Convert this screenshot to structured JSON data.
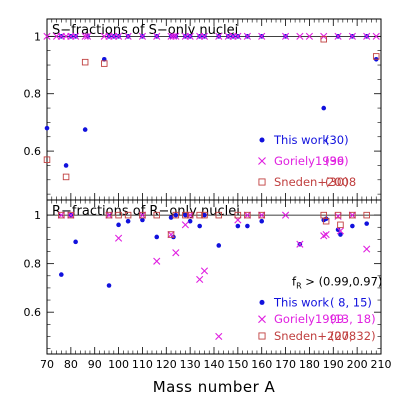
{
  "colors": {
    "this_work": "#1111dd",
    "goriely": "#e020e0",
    "sneden": "#c04040",
    "axis": "#000000"
  },
  "chart_data": [
    {
      "type": "scatter",
      "panel_title": "S−fractions of S−only nuclei",
      "xlim": [
        70,
        210
      ],
      "ylim": [
        0.44,
        1.05
      ],
      "reference_line": 1.0,
      "yticks": [
        0.6,
        0.8,
        1.0
      ],
      "ytick_labels": [
        "0.6",
        "0.8",
        "1"
      ],
      "legend_position": "bottom-right",
      "series": [
        {
          "name": "This work",
          "count_label": "(30)",
          "marker": "dot",
          "color": "#1111dd",
          "x": [
            70,
            76,
            78,
            80,
            82,
            86,
            87,
            94,
            96,
            98,
            100,
            104,
            110,
            116,
            122,
            123,
            124,
            128,
            130,
            134,
            136,
            142,
            146,
            148,
            150,
            154,
            160,
            170,
            186,
            192,
            198,
            204,
            208
          ],
          "y": [
            0.68,
            1.0,
            0.55,
            1.0,
            1.0,
            0.675,
            1.0,
            0.92,
            1.0,
            1.0,
            1.0,
            1.0,
            1.0,
            1.0,
            1.0,
            1.0,
            1.0,
            1.0,
            1.0,
            1.0,
            1.0,
            1.0,
            1.0,
            1.0,
            1.0,
            1.0,
            1.0,
            1.0,
            0.75,
            1.0,
            1.0,
            1.0,
            0.92
          ]
        },
        {
          "name": "Goriely1999",
          "count_label": "(36)",
          "marker": "cross",
          "color": "#e020e0",
          "x": [
            70,
            74,
            76,
            78,
            80,
            82,
            86,
            87,
            94,
            96,
            98,
            100,
            104,
            110,
            116,
            122,
            123,
            124,
            128,
            130,
            134,
            136,
            142,
            146,
            148,
            150,
            154,
            160,
            170,
            176,
            180,
            186,
            192,
            198,
            204,
            208
          ],
          "y": [
            1.0,
            1.0,
            1.0,
            1.0,
            1.0,
            1.0,
            1.0,
            1.0,
            1.0,
            1.0,
            1.0,
            1.0,
            1.0,
            1.0,
            1.0,
            1.0,
            1.0,
            1.0,
            1.0,
            1.0,
            1.0,
            1.0,
            1.0,
            1.0,
            1.0,
            1.0,
            1.0,
            1.0,
            1.0,
            1.0,
            1.0,
            1.0,
            1.0,
            1.0,
            1.0,
            1.0
          ]
        },
        {
          "name": "Sneden+2008",
          "count_label": "(30)",
          "marker": "square",
          "color": "#c04040",
          "x": [
            70,
            78,
            86,
            94,
            186,
            208
          ],
          "y": [
            0.57,
            0.51,
            0.91,
            0.905,
            0.99,
            0.93
          ]
        }
      ]
    },
    {
      "type": "scatter",
      "panel_title": "R−fractions of R−only nuclei",
      "xlim": [
        70,
        210
      ],
      "ylim": [
        0.44,
        1.05
      ],
      "reference_line": 1.0,
      "yticks": [
        0.6,
        0.8,
        1.0
      ],
      "ytick_labels": [
        "0.6",
        "0.8",
        "1"
      ],
      "xticks": [
        70,
        80,
        90,
        100,
        110,
        120,
        130,
        140,
        150,
        160,
        170,
        180,
        190,
        200,
        210
      ],
      "xtick_labels": [
        "70",
        "80",
        "90",
        "100",
        "110",
        "120",
        "130",
        "140",
        "150",
        "160",
        "170",
        "180",
        "190",
        "200",
        "210"
      ],
      "xlabel": "Mass number A",
      "legend_position": "bottom-right",
      "fr_label": "f",
      "fr_sub": "R",
      "fr_text": " >   (0.99,0.97)",
      "series": [
        {
          "name": "This work",
          "count_label": "( 8, 15)",
          "marker": "dot",
          "color": "#1111dd",
          "x": [
            76,
            80,
            82,
            96,
            100,
            104,
            110,
            116,
            122,
            123,
            124,
            128,
            130,
            134,
            136,
            142,
            150,
            154,
            160,
            176,
            186,
            187,
            192,
            193,
            198,
            204
          ],
          "y": [
            0.755,
            1.0,
            0.89,
            0.71,
            0.96,
            0.975,
            0.98,
            0.91,
            0.99,
            0.91,
            1.0,
            1.0,
            0.975,
            0.955,
            1.0,
            0.875,
            0.955,
            0.955,
            0.975,
            0.88,
            0.98,
            0.985,
            0.94,
            0.92,
            0.955,
            0.965
          ]
        },
        {
          "name": "Goriely1999",
          "count_label": "(13, 18)",
          "marker": "cross",
          "color": "#e020e0",
          "x": [
            76,
            80,
            96,
            100,
            110,
            116,
            122,
            124,
            128,
            130,
            134,
            136,
            142,
            150,
            154,
            160,
            170,
            176,
            186,
            187,
            192,
            193,
            198,
            204
          ],
          "y": [
            1.0,
            1.0,
            1.0,
            0.905,
            1.0,
            0.81,
            0.92,
            0.845,
            0.96,
            1.0,
            0.735,
            0.77,
            0.5,
            0.98,
            1.0,
            1.0,
            1.0,
            0.88,
            0.915,
            0.92,
            0.995,
            0.935,
            1.0,
            0.86
          ]
        },
        {
          "name": "Sneden+2008",
          "count_label": "(27, 32)",
          "marker": "square",
          "color": "#c04040",
          "x": [
            76,
            80,
            96,
            100,
            104,
            110,
            116,
            122,
            124,
            128,
            130,
            134,
            136,
            142,
            150,
            154,
            160,
            186,
            187,
            192,
            193,
            198,
            204
          ],
          "y": [
            1.0,
            1.0,
            1.0,
            1.0,
            1.0,
            1.0,
            1.0,
            0.92,
            1.0,
            1.0,
            1.0,
            1.0,
            1.0,
            1.0,
            1.0,
            1.0,
            1.0,
            1.0,
            0.975,
            1.0,
            0.96,
            1.0,
            1.0
          ]
        }
      ]
    }
  ]
}
